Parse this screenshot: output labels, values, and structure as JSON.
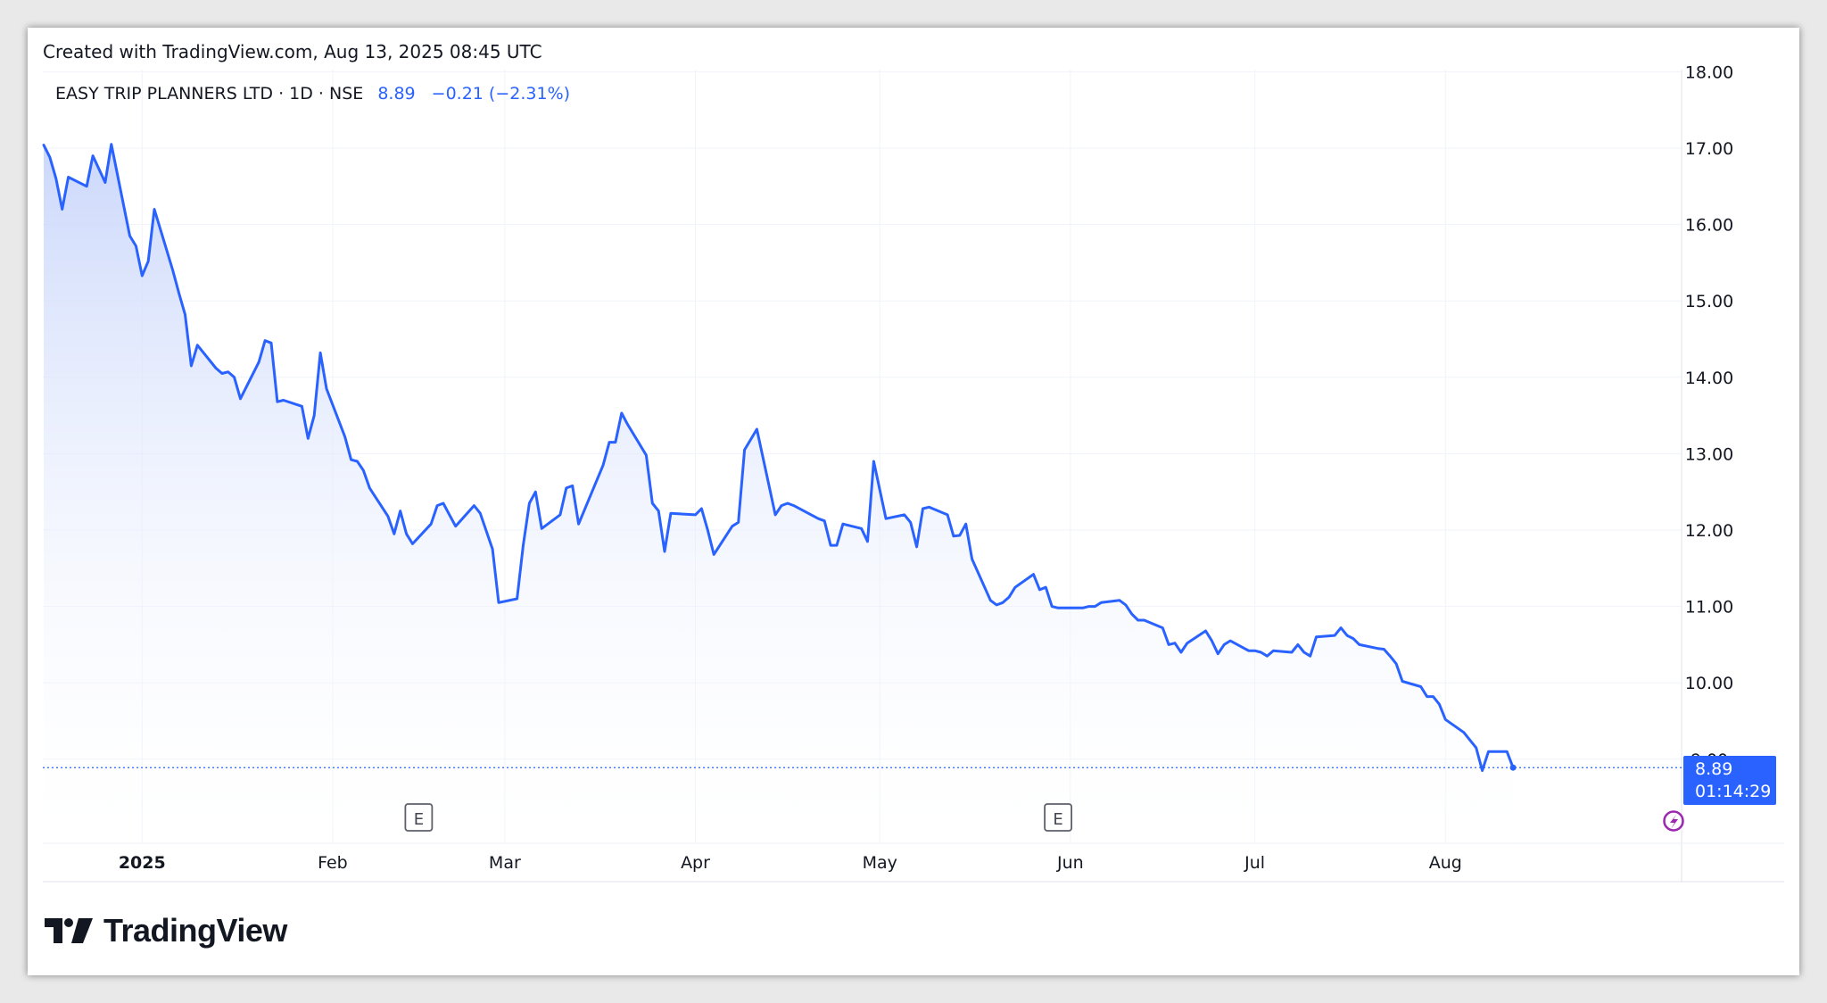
{
  "caption": "Created with TradingView.com, Aug 13, 2025 08:45 UTC",
  "legend": {
    "symbol": "EASY TRIP PLANNERS LTD · 1D · NSE",
    "price": "8.89",
    "change": "−0.21 (−2.31%)"
  },
  "price_tag": {
    "price": "8.89",
    "countdown": "01:14:29"
  },
  "earnings_markers": [
    "E",
    "E"
  ],
  "brand": "TradingView",
  "colors": {
    "line": "#2962ff",
    "fill_top": "#c9d6fb",
    "text": "#131722",
    "grid": "#f0f3fa",
    "earnings_border": "#5d606b",
    "lightning": "#9c27b0"
  },
  "chart_data": {
    "type": "area",
    "title": "EASY TRIP PLANNERS LTD · 1D · NSE",
    "xlabel": "",
    "ylabel": "",
    "ylim": [
      8.0,
      18.0
    ],
    "grid": true,
    "y_ticks": [
      "18.00",
      "17.00",
      "16.00",
      "15.00",
      "14.00",
      "13.00",
      "12.00",
      "11.00",
      "10.00",
      "9.00"
    ],
    "x_ticks": [
      {
        "label": "2025",
        "date": "2025-01-01"
      },
      {
        "label": "Feb",
        "date": "2025-02-01"
      },
      {
        "label": "Mar",
        "date": "2025-03-01"
      },
      {
        "label": "Apr",
        "date": "2025-04-01"
      },
      {
        "label": "May",
        "date": "2025-05-01"
      },
      {
        "label": "Jun",
        "date": "2025-06-01"
      },
      {
        "label": "Jul",
        "date": "2025-07-01"
      },
      {
        "label": "Aug",
        "date": "2025-08-01"
      }
    ],
    "earnings_dates": [
      "2025-02-15",
      "2025-05-30"
    ],
    "last_price": 8.89,
    "series": [
      {
        "values": [
          [
            "2024-12-16",
            17.04
          ],
          [
            "2024-12-17",
            16.88
          ],
          [
            "2024-12-18",
            16.6
          ],
          [
            "2024-12-19",
            16.2
          ],
          [
            "2024-12-20",
            16.62
          ],
          [
            "2024-12-23",
            16.5
          ],
          [
            "2024-12-24",
            16.9
          ],
          [
            "2024-12-26",
            16.55
          ],
          [
            "2024-12-27",
            17.05
          ],
          [
            "2024-12-30",
            15.85
          ],
          [
            "2024-12-31",
            15.72
          ],
          [
            "2025-01-01",
            15.33
          ],
          [
            "2025-01-02",
            15.52
          ],
          [
            "2025-01-03",
            16.2
          ],
          [
            "2025-01-06",
            15.4
          ],
          [
            "2025-01-07",
            15.1
          ],
          [
            "2025-01-08",
            14.82
          ],
          [
            "2025-01-09",
            14.15
          ],
          [
            "2025-01-10",
            14.42
          ],
          [
            "2025-01-13",
            14.12
          ],
          [
            "2025-01-14",
            14.05
          ],
          [
            "2025-01-15",
            14.07
          ],
          [
            "2025-01-16",
            14.0
          ],
          [
            "2025-01-17",
            13.72
          ],
          [
            "2025-01-20",
            14.2
          ],
          [
            "2025-01-21",
            14.48
          ],
          [
            "2025-01-22",
            14.45
          ],
          [
            "2025-01-23",
            13.68
          ],
          [
            "2025-01-24",
            13.7
          ],
          [
            "2025-01-27",
            13.62
          ],
          [
            "2025-01-28",
            13.2
          ],
          [
            "2025-01-29",
            13.5
          ],
          [
            "2025-01-30",
            14.32
          ],
          [
            "2025-01-31",
            13.85
          ],
          [
            "2025-02-03",
            13.22
          ],
          [
            "2025-02-04",
            12.92
          ],
          [
            "2025-02-05",
            12.9
          ],
          [
            "2025-02-06",
            12.78
          ],
          [
            "2025-02-07",
            12.55
          ],
          [
            "2025-02-10",
            12.18
          ],
          [
            "2025-02-11",
            11.95
          ],
          [
            "2025-02-12",
            12.25
          ],
          [
            "2025-02-13",
            11.95
          ],
          [
            "2025-02-14",
            11.82
          ],
          [
            "2025-02-17",
            12.08
          ],
          [
            "2025-02-18",
            12.32
          ],
          [
            "2025-02-19",
            12.35
          ],
          [
            "2025-02-20",
            12.2
          ],
          [
            "2025-02-21",
            12.05
          ],
          [
            "2025-02-24",
            12.32
          ],
          [
            "2025-02-25",
            12.22
          ],
          [
            "2025-02-27",
            11.75
          ],
          [
            "2025-02-28",
            11.05
          ],
          [
            "2025-03-03",
            11.1
          ],
          [
            "2025-03-04",
            11.8
          ],
          [
            "2025-03-05",
            12.35
          ],
          [
            "2025-03-06",
            12.5
          ],
          [
            "2025-03-07",
            12.02
          ],
          [
            "2025-03-10",
            12.2
          ],
          [
            "2025-03-11",
            12.55
          ],
          [
            "2025-03-12",
            12.58
          ],
          [
            "2025-03-13",
            12.08
          ],
          [
            "2025-03-17",
            12.85
          ],
          [
            "2025-03-18",
            13.15
          ],
          [
            "2025-03-19",
            13.15
          ],
          [
            "2025-03-20",
            13.53
          ],
          [
            "2025-03-21",
            13.38
          ],
          [
            "2025-03-24",
            12.98
          ],
          [
            "2025-03-25",
            12.35
          ],
          [
            "2025-03-26",
            12.25
          ],
          [
            "2025-03-27",
            11.72
          ],
          [
            "2025-03-28",
            12.22
          ],
          [
            "2025-04-01",
            12.2
          ],
          [
            "2025-04-02",
            12.28
          ],
          [
            "2025-04-03",
            12.0
          ],
          [
            "2025-04-04",
            11.68
          ],
          [
            "2025-04-07",
            12.05
          ],
          [
            "2025-04-08",
            12.1
          ],
          [
            "2025-04-09",
            13.05
          ],
          [
            "2025-04-11",
            13.32
          ],
          [
            "2025-04-14",
            12.2
          ],
          [
            "2025-04-15",
            12.32
          ],
          [
            "2025-04-16",
            12.35
          ],
          [
            "2025-04-17",
            12.32
          ],
          [
            "2025-04-21",
            12.15
          ],
          [
            "2025-04-22",
            12.12
          ],
          [
            "2025-04-23",
            11.8
          ],
          [
            "2025-04-24",
            11.8
          ],
          [
            "2025-04-25",
            12.08
          ],
          [
            "2025-04-28",
            12.02
          ],
          [
            "2025-04-29",
            11.85
          ],
          [
            "2025-04-30",
            12.9
          ],
          [
            "2025-05-02",
            12.15
          ],
          [
            "2025-05-05",
            12.2
          ],
          [
            "2025-05-06",
            12.1
          ],
          [
            "2025-05-07",
            11.78
          ],
          [
            "2025-05-08",
            12.28
          ],
          [
            "2025-05-09",
            12.3
          ],
          [
            "2025-05-12",
            12.2
          ],
          [
            "2025-05-13",
            11.92
          ],
          [
            "2025-05-14",
            11.93
          ],
          [
            "2025-05-15",
            12.08
          ],
          [
            "2025-05-16",
            11.62
          ],
          [
            "2025-05-19",
            11.08
          ],
          [
            "2025-05-20",
            11.02
          ],
          [
            "2025-05-21",
            11.05
          ],
          [
            "2025-05-22",
            11.12
          ],
          [
            "2025-05-23",
            11.25
          ],
          [
            "2025-05-26",
            11.42
          ],
          [
            "2025-05-27",
            11.22
          ],
          [
            "2025-05-28",
            11.25
          ],
          [
            "2025-05-29",
            11.0
          ],
          [
            "2025-05-30",
            10.98
          ],
          [
            "2025-06-02",
            10.98
          ],
          [
            "2025-06-03",
            10.98
          ],
          [
            "2025-06-04",
            11.0
          ],
          [
            "2025-06-05",
            11.0
          ],
          [
            "2025-06-06",
            11.05
          ],
          [
            "2025-06-09",
            11.08
          ],
          [
            "2025-06-10",
            11.02
          ],
          [
            "2025-06-11",
            10.9
          ],
          [
            "2025-06-12",
            10.82
          ],
          [
            "2025-06-13",
            10.82
          ],
          [
            "2025-06-16",
            10.72
          ],
          [
            "2025-06-17",
            10.5
          ],
          [
            "2025-06-18",
            10.52
          ],
          [
            "2025-06-19",
            10.4
          ],
          [
            "2025-06-20",
            10.52
          ],
          [
            "2025-06-23",
            10.68
          ],
          [
            "2025-06-24",
            10.55
          ],
          [
            "2025-06-25",
            10.38
          ],
          [
            "2025-06-26",
            10.5
          ],
          [
            "2025-06-27",
            10.55
          ],
          [
            "2025-06-30",
            10.42
          ],
          [
            "2025-07-01",
            10.42
          ],
          [
            "2025-07-02",
            10.4
          ],
          [
            "2025-07-03",
            10.35
          ],
          [
            "2025-07-04",
            10.42
          ],
          [
            "2025-07-07",
            10.4
          ],
          [
            "2025-07-08",
            10.5
          ],
          [
            "2025-07-09",
            10.4
          ],
          [
            "2025-07-10",
            10.35
          ],
          [
            "2025-07-11",
            10.6
          ],
          [
            "2025-07-14",
            10.62
          ],
          [
            "2025-07-15",
            10.72
          ],
          [
            "2025-07-16",
            10.62
          ],
          [
            "2025-07-17",
            10.58
          ],
          [
            "2025-07-18",
            10.5
          ],
          [
            "2025-07-21",
            10.45
          ],
          [
            "2025-07-22",
            10.44
          ],
          [
            "2025-07-23",
            10.35
          ],
          [
            "2025-07-24",
            10.25
          ],
          [
            "2025-07-25",
            10.02
          ],
          [
            "2025-07-28",
            9.95
          ],
          [
            "2025-07-29",
            9.82
          ],
          [
            "2025-07-30",
            9.82
          ],
          [
            "2025-07-31",
            9.72
          ],
          [
            "2025-08-01",
            9.52
          ],
          [
            "2025-08-04",
            9.35
          ],
          [
            "2025-08-05",
            9.25
          ],
          [
            "2025-08-06",
            9.15
          ],
          [
            "2025-08-07",
            8.85
          ],
          [
            "2025-08-08",
            9.1
          ],
          [
            "2025-08-11",
            9.1
          ],
          [
            "2025-08-12",
            8.89
          ]
        ]
      }
    ]
  }
}
